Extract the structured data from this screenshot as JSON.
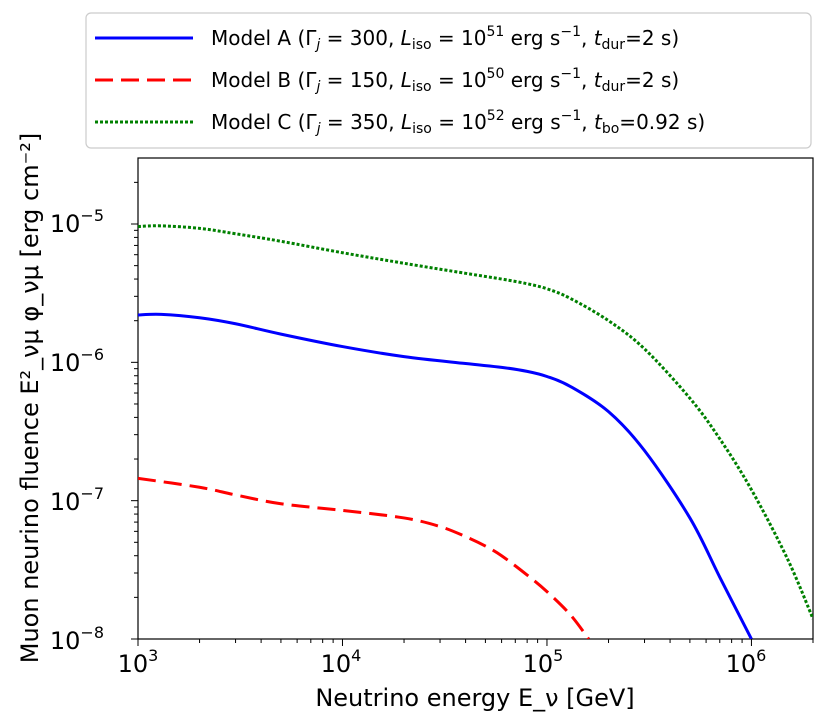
{
  "chart_data": {
    "type": "line",
    "xscale": "log",
    "yscale": "log",
    "xlim": [
      1000,
      2000000
    ],
    "ylim": [
      1e-08,
      3e-05
    ],
    "grid": false,
    "legend_position": "top",
    "xlabel": "Neutrino energy E_ν [GeV]",
    "ylabel": "Muon neurino fluence E²_νμ φ_νμ [erg cm⁻²]",
    "x_ticks": [
      {
        "value": 1000,
        "base": "10",
        "exp": "3"
      },
      {
        "value": 10000,
        "base": "10",
        "exp": "4"
      },
      {
        "value": 100000,
        "base": "10",
        "exp": "5"
      },
      {
        "value": 1000000,
        "base": "10",
        "exp": "6"
      }
    ],
    "y_ticks": [
      {
        "value": 1e-08,
        "base": "10",
        "exp": "−8"
      },
      {
        "value": 1e-07,
        "base": "10",
        "exp": "−7"
      },
      {
        "value": 1e-06,
        "base": "10",
        "exp": "−6"
      },
      {
        "value": 1e-05,
        "base": "10",
        "exp": "−5"
      }
    ],
    "series": [
      {
        "name": "Model A (Γj = 300, Liso = 10^51 erg s^−1, tdur=2 s)",
        "label": {
          "gamma": "300",
          "liso_exp": "51",
          "t_sub": "dur",
          "t_val": "2 s"
        },
        "color": "#0000ff",
        "style": "solid",
        "x": [
          1000,
          1300,
          2000,
          3000,
          5000,
          10000,
          20000,
          40000,
          60000,
          80000,
          100000,
          130000,
          200000,
          300000,
          500000,
          700000,
          1000000
        ],
        "y": [
          2.2e-06,
          2.22e-06,
          2.1e-06,
          1.9e-06,
          1.6e-06,
          1.3e-06,
          1.1e-06,
          9.8e-07,
          9.2e-07,
          8.6e-07,
          7.9e-07,
          6.7e-07,
          4.4e-07,
          2.3e-07,
          7.5e-08,
          2.8e-08,
          1e-08
        ]
      },
      {
        "name": "Model B (Γj = 150, Liso = 10^50 erg s^−1, tdur=2 s)",
        "label": {
          "gamma": "150",
          "liso_exp": "50",
          "t_sub": "dur",
          "t_val": "2 s"
        },
        "color": "#ff0000",
        "style": "dashed",
        "x": [
          1000,
          2000,
          3000,
          5000,
          10000,
          20000,
          30000,
          40000,
          50000,
          60000,
          80000,
          100000,
          130000,
          160000
        ],
        "y": [
          1.45e-07,
          1.25e-07,
          1.1e-07,
          9.5e-08,
          8.5e-08,
          7.5e-08,
          6.5e-08,
          5.5e-08,
          4.7e-08,
          4e-08,
          2.9e-08,
          2.2e-08,
          1.5e-08,
          1e-08
        ]
      },
      {
        "name": "Model C (Γj = 350, Liso = 10^52 erg s^−1, tbo=0.92 s)",
        "label": {
          "gamma": "350",
          "liso_exp": "52",
          "t_sub": "bo",
          "t_val": "0.92 s"
        },
        "color": "#008000",
        "style": "dotted",
        "x": [
          1000,
          1300,
          2000,
          3000,
          5000,
          10000,
          20000,
          40000,
          60000,
          80000,
          100000,
          130000,
          200000,
          300000,
          500000,
          700000,
          1000000,
          1500000,
          2000000
        ],
        "y": [
          9.6e-06,
          9.7e-06,
          9.3e-06,
          8.5e-06,
          7.5e-06,
          6.2e-06,
          5.2e-06,
          4.4e-06,
          4e-06,
          3.7e-06,
          3.4e-06,
          2.9e-06,
          2e-06,
          1.25e-06,
          5.5e-07,
          2.8e-07,
          1.2e-07,
          3.8e-08,
          1.4e-08
        ]
      }
    ]
  }
}
